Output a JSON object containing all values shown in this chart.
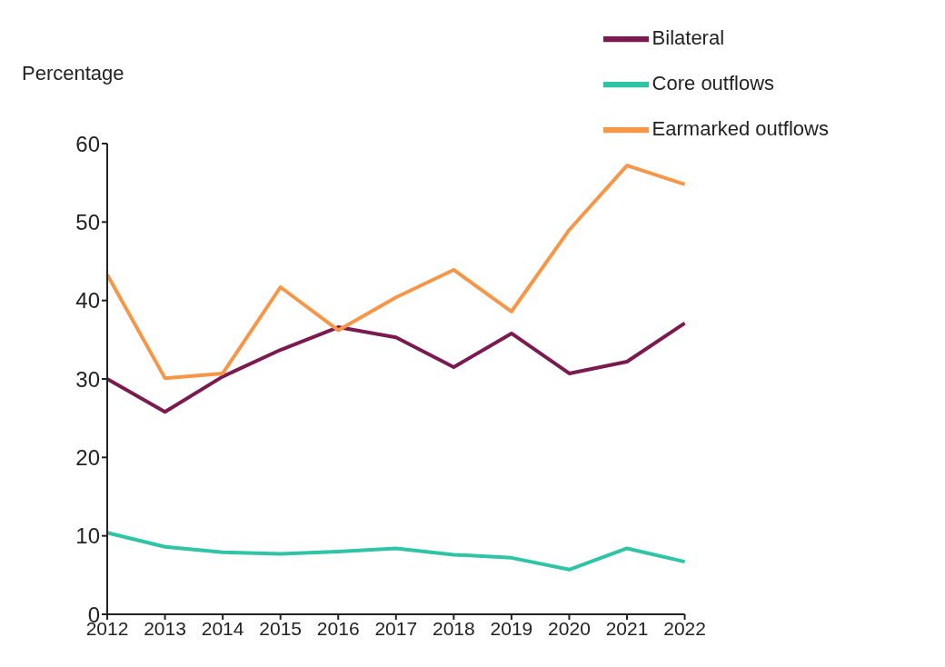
{
  "chart_data": {
    "type": "line",
    "ylabel": "Percentage",
    "categories": [
      "2012",
      "2013",
      "2014",
      "2015",
      "2016",
      "2017",
      "2018",
      "2019",
      "2020",
      "2021",
      "2022"
    ],
    "series": [
      {
        "name": "Bilateral",
        "color": "#7b1a4f",
        "values": [
          30.0,
          25.8,
          30.3,
          33.7,
          36.6,
          35.3,
          31.5,
          35.8,
          30.7,
          32.2,
          37.1
        ]
      },
      {
        "name": "Core outflows",
        "color": "#2ec4a5",
        "values": [
          10.4,
          8.6,
          7.9,
          7.7,
          8.0,
          8.4,
          7.6,
          7.2,
          5.7,
          8.4,
          6.7
        ]
      },
      {
        "name": "Earmarked outflows",
        "color": "#f79646",
        "values": [
          43.3,
          30.1,
          30.7,
          41.7,
          36.2,
          40.4,
          43.9,
          38.6,
          49.0,
          57.2,
          54.8
        ]
      }
    ],
    "ylim": [
      0,
      60
    ],
    "yticks": [
      0,
      10,
      20,
      30,
      40,
      50,
      60
    ],
    "grid": false,
    "legend": "top right",
    "marker": "none",
    "line_style": "solid"
  }
}
